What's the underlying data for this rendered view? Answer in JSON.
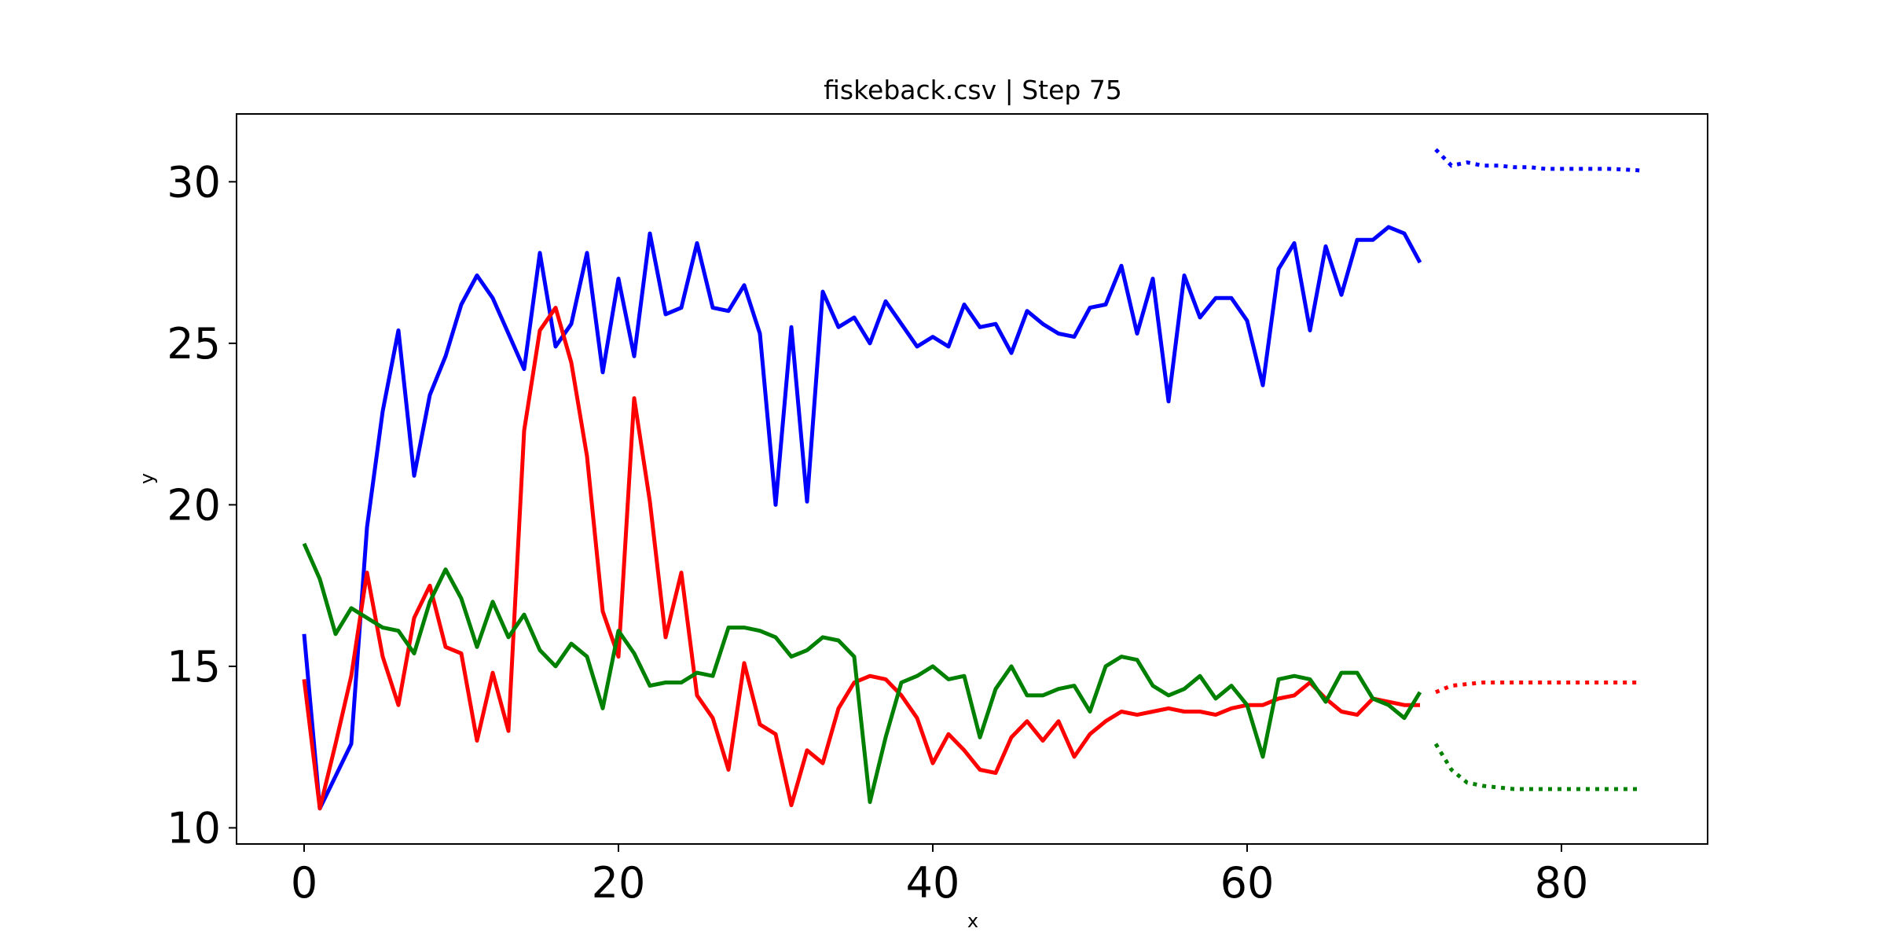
{
  "chart_data": {
    "type": "line",
    "title": "fiskeback.csv | Step 75",
    "xlabel": "x",
    "ylabel": "y",
    "xlim": [
      -4.3,
      89.3
    ],
    "ylim": [
      9.5,
      32.1
    ],
    "xticks": [
      0,
      20,
      40,
      60,
      80
    ],
    "yticks": [
      10,
      15,
      20,
      25,
      30
    ],
    "grid": false,
    "legend": "none",
    "series": [
      {
        "color": "#0000ff",
        "style": "solid",
        "x": [
          0,
          1,
          2,
          3,
          4,
          5,
          6,
          7,
          8,
          9,
          10,
          11,
          12,
          13,
          14,
          15,
          16,
          17,
          18,
          19,
          20,
          21,
          22,
          23,
          24,
          25,
          26,
          27,
          28,
          29,
          30,
          31,
          32,
          33,
          34,
          35,
          36,
          37,
          38,
          39,
          40,
          41,
          42,
          43,
          44,
          45,
          46,
          47,
          48,
          49,
          50,
          51,
          52,
          53,
          54,
          55,
          56,
          57,
          58,
          59,
          60,
          61,
          62,
          63,
          64,
          65,
          66,
          67,
          68,
          69,
          70,
          71
        ],
        "values": [
          16.0,
          10.6,
          11.6,
          12.6,
          19.3,
          22.9,
          25.4,
          20.9,
          23.4,
          24.6,
          26.2,
          27.1,
          26.4,
          25.3,
          24.2,
          27.8,
          24.9,
          25.6,
          27.8,
          24.1,
          27.0,
          24.6,
          28.4,
          25.9,
          26.1,
          28.1,
          26.1,
          26.0,
          26.8,
          25.3,
          20.0,
          25.5,
          20.1,
          26.6,
          25.5,
          25.8,
          25.0,
          26.3,
          25.6,
          24.9,
          25.2,
          24.9,
          26.2,
          25.5,
          25.6,
          24.7,
          26.0,
          25.6,
          25.3,
          25.2,
          26.1,
          26.2,
          27.4,
          25.3,
          27.0,
          23.2,
          27.1,
          25.8,
          26.4,
          26.4,
          25.7,
          23.7,
          27.3,
          28.1,
          25.4,
          28.0,
          26.5,
          28.2,
          28.2,
          28.6,
          28.4,
          27.5
        ]
      },
      {
        "color": "#ff0000",
        "style": "solid",
        "x": [
          0,
          1,
          2,
          3,
          4,
          5,
          6,
          7,
          8,
          9,
          10,
          11,
          12,
          13,
          14,
          15,
          16,
          17,
          18,
          19,
          20,
          21,
          22,
          23,
          24,
          25,
          26,
          27,
          28,
          29,
          30,
          31,
          32,
          33,
          34,
          35,
          36,
          37,
          38,
          39,
          40,
          41,
          42,
          43,
          44,
          45,
          46,
          47,
          48,
          49,
          50,
          51,
          52,
          53,
          54,
          55,
          56,
          57,
          58,
          59,
          60,
          61,
          62,
          63,
          64,
          65,
          66,
          67,
          68,
          69,
          70,
          71
        ],
        "values": [
          14.6,
          10.6,
          12.6,
          14.7,
          17.9,
          15.3,
          13.8,
          16.5,
          17.5,
          15.6,
          15.4,
          12.7,
          14.8,
          13.0,
          22.3,
          25.4,
          26.1,
          24.4,
          21.5,
          16.7,
          15.3,
          23.3,
          20.1,
          15.9,
          17.9,
          14.1,
          13.4,
          11.8,
          15.1,
          13.2,
          12.9,
          10.7,
          12.4,
          12.0,
          13.7,
          14.5,
          14.7,
          14.6,
          14.1,
          13.4,
          12.0,
          12.9,
          12.4,
          11.8,
          11.7,
          12.8,
          13.3,
          12.7,
          13.3,
          12.2,
          12.9,
          13.3,
          13.6,
          13.5,
          13.6,
          13.7,
          13.6,
          13.6,
          13.5,
          13.7,
          13.8,
          13.8,
          14.0,
          14.1,
          14.5,
          14.0,
          13.6,
          13.5,
          14.0,
          13.9,
          13.8,
          13.8
        ]
      },
      {
        "color": "#008000",
        "style": "solid",
        "x": [
          0,
          1,
          2,
          3,
          4,
          5,
          6,
          7,
          8,
          9,
          10,
          11,
          12,
          13,
          14,
          15,
          16,
          17,
          18,
          19,
          20,
          21,
          22,
          23,
          24,
          25,
          26,
          27,
          28,
          29,
          30,
          31,
          32,
          33,
          34,
          35,
          36,
          37,
          38,
          39,
          40,
          41,
          42,
          43,
          44,
          45,
          46,
          47,
          48,
          49,
          50,
          51,
          52,
          53,
          54,
          55,
          56,
          57,
          58,
          59,
          60,
          61,
          62,
          63,
          64,
          65,
          66,
          67,
          68,
          69,
          70,
          71
        ],
        "values": [
          18.8,
          17.7,
          16.0,
          16.8,
          16.5,
          16.2,
          16.1,
          15.4,
          17.0,
          18.0,
          17.1,
          15.6,
          17.0,
          15.9,
          16.6,
          15.5,
          15.0,
          15.7,
          15.3,
          13.7,
          16.1,
          15.4,
          14.4,
          14.5,
          14.5,
          14.8,
          14.7,
          16.2,
          16.2,
          16.1,
          15.9,
          15.3,
          15.5,
          15.9,
          15.8,
          15.3,
          10.8,
          12.8,
          14.5,
          14.7,
          15.0,
          14.6,
          14.7,
          12.8,
          14.3,
          15.0,
          14.1,
          14.1,
          14.3,
          14.4,
          13.6,
          15.0,
          15.3,
          15.2,
          14.4,
          14.1,
          14.3,
          14.7,
          14.0,
          14.4,
          13.8,
          12.2,
          14.6,
          14.7,
          14.6,
          13.9,
          14.8,
          14.8,
          14.0,
          13.8,
          13.4,
          14.2
        ]
      },
      {
        "color": "#0000ff",
        "style": "dotted",
        "x": [
          72,
          73,
          74,
          75,
          76,
          77,
          78,
          79,
          80,
          81,
          82,
          83,
          84,
          85
        ],
        "values": [
          31.0,
          30.5,
          30.6,
          30.5,
          30.5,
          30.45,
          30.45,
          30.4,
          30.4,
          30.4,
          30.4,
          30.4,
          30.38,
          30.35
        ]
      },
      {
        "color": "#ff0000",
        "style": "dotted",
        "x": [
          72,
          73,
          74,
          75,
          76,
          77,
          78,
          79,
          80,
          81,
          82,
          83,
          84,
          85
        ],
        "values": [
          14.2,
          14.4,
          14.45,
          14.5,
          14.5,
          14.5,
          14.5,
          14.5,
          14.5,
          14.5,
          14.5,
          14.5,
          14.5,
          14.5
        ]
      },
      {
        "color": "#008000",
        "style": "dotted",
        "x": [
          72,
          73,
          74,
          75,
          76,
          77,
          78,
          79,
          80,
          81,
          82,
          83,
          84,
          85
        ],
        "values": [
          12.6,
          11.8,
          11.4,
          11.3,
          11.25,
          11.2,
          11.2,
          11.2,
          11.2,
          11.2,
          11.2,
          11.2,
          11.2,
          11.2
        ]
      }
    ]
  }
}
